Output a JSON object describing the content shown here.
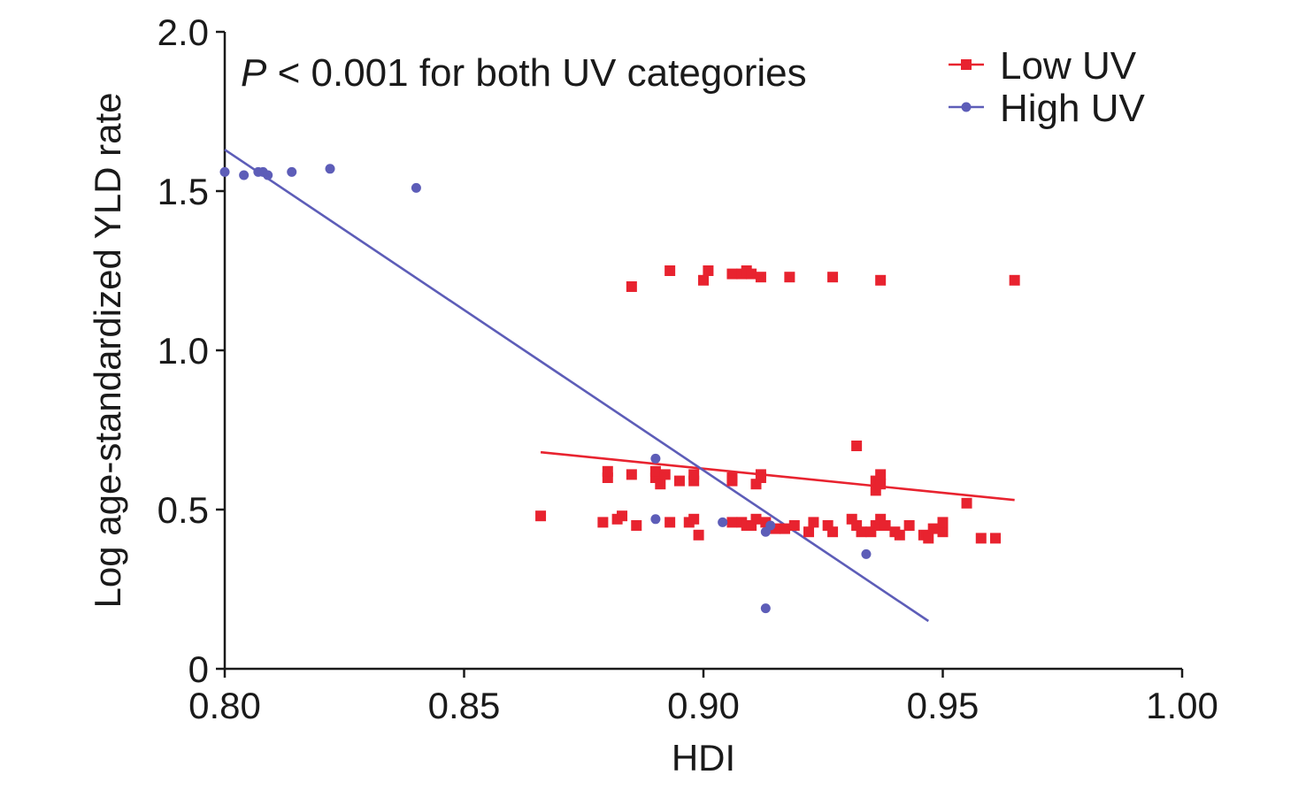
{
  "chart_data": {
    "type": "scatter",
    "xlabel": "HDI",
    "ylabel": "Log age-standardized YLD rate",
    "xlim": [
      0.8,
      1.0
    ],
    "ylim": [
      0,
      2.0
    ],
    "x_ticks": [
      "0.80",
      "0.85",
      "0.90",
      "0.95",
      "1.00"
    ],
    "y_ticks": [
      "0",
      "0.5",
      "1.0",
      "1.5",
      "2.0"
    ],
    "annotation": {
      "italic_part": "P",
      "rest": " < 0.001 for both UV categories"
    },
    "legend_position": "top-right",
    "series": [
      {
        "name": "Low UV",
        "color": "#e8232f",
        "marker": "square",
        "points": [
          [
            0.885,
            1.2
          ],
          [
            0.893,
            1.25
          ],
          [
            0.9,
            1.22
          ],
          [
            0.901,
            1.25
          ],
          [
            0.906,
            1.24
          ],
          [
            0.908,
            1.24
          ],
          [
            0.909,
            1.25
          ],
          [
            0.91,
            1.24
          ],
          [
            0.912,
            1.23
          ],
          [
            0.918,
            1.23
          ],
          [
            0.927,
            1.23
          ],
          [
            0.937,
            1.22
          ],
          [
            0.965,
            1.22
          ],
          [
            0.866,
            0.48
          ],
          [
            0.879,
            0.46
          ],
          [
            0.882,
            0.47
          ],
          [
            0.883,
            0.48
          ],
          [
            0.886,
            0.45
          ],
          [
            0.893,
            0.46
          ],
          [
            0.897,
            0.46
          ],
          [
            0.898,
            0.47
          ],
          [
            0.899,
            0.42
          ],
          [
            0.906,
            0.46
          ],
          [
            0.908,
            0.46
          ],
          [
            0.909,
            0.45
          ],
          [
            0.91,
            0.45
          ],
          [
            0.911,
            0.47
          ],
          [
            0.913,
            0.46
          ],
          [
            0.915,
            0.44
          ],
          [
            0.917,
            0.44
          ],
          [
            0.919,
            0.45
          ],
          [
            0.922,
            0.43
          ],
          [
            0.923,
            0.46
          ],
          [
            0.926,
            0.45
          ],
          [
            0.927,
            0.43
          ],
          [
            0.931,
            0.47
          ],
          [
            0.932,
            0.45
          ],
          [
            0.933,
            0.43
          ],
          [
            0.935,
            0.43
          ],
          [
            0.936,
            0.45
          ],
          [
            0.937,
            0.47
          ],
          [
            0.938,
            0.45
          ],
          [
            0.94,
            0.43
          ],
          [
            0.941,
            0.42
          ],
          [
            0.943,
            0.45
          ],
          [
            0.946,
            0.42
          ],
          [
            0.947,
            0.41
          ],
          [
            0.948,
            0.44
          ],
          [
            0.95,
            0.43
          ],
          [
            0.95,
            0.46
          ],
          [
            0.958,
            0.41
          ],
          [
            0.961,
            0.41
          ],
          [
            0.88,
            0.6
          ],
          [
            0.88,
            0.62
          ],
          [
            0.885,
            0.61
          ],
          [
            0.89,
            0.6
          ],
          [
            0.89,
            0.62
          ],
          [
            0.891,
            0.58
          ],
          [
            0.892,
            0.61
          ],
          [
            0.895,
            0.59
          ],
          [
            0.898,
            0.59
          ],
          [
            0.898,
            0.61
          ],
          [
            0.906,
            0.6
          ],
          [
            0.906,
            0.59
          ],
          [
            0.911,
            0.58
          ],
          [
            0.912,
            0.6
          ],
          [
            0.912,
            0.61
          ],
          [
            0.932,
            0.7
          ],
          [
            0.936,
            0.56
          ],
          [
            0.936,
            0.59
          ],
          [
            0.937,
            0.58
          ],
          [
            0.937,
            0.61
          ],
          [
            0.955,
            0.52
          ]
        ],
        "fit": [
          [
            0.866,
            0.68
          ],
          [
            0.965,
            0.53
          ]
        ]
      },
      {
        "name": "High UV",
        "color": "#5d5db8",
        "marker": "circle",
        "points": [
          [
            0.8,
            1.56
          ],
          [
            0.804,
            1.55
          ],
          [
            0.807,
            1.56
          ],
          [
            0.808,
            1.56
          ],
          [
            0.809,
            1.55
          ],
          [
            0.814,
            1.56
          ],
          [
            0.822,
            1.57
          ],
          [
            0.84,
            1.51
          ],
          [
            0.89,
            0.66
          ],
          [
            0.89,
            0.47
          ],
          [
            0.904,
            0.46
          ],
          [
            0.913,
            0.43
          ],
          [
            0.914,
            0.45
          ],
          [
            0.913,
            0.19
          ],
          [
            0.934,
            0.36
          ]
        ],
        "fit": [
          [
            0.8,
            1.63
          ],
          [
            0.947,
            0.15
          ]
        ]
      }
    ]
  }
}
